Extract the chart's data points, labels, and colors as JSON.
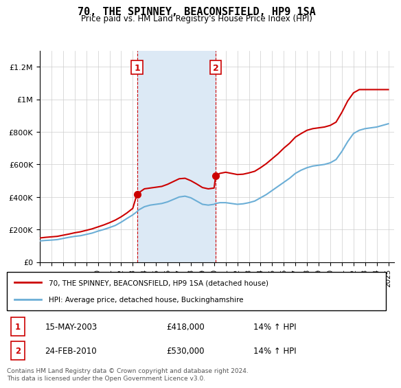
{
  "title": "70, THE SPINNEY, BEACONSFIELD, HP9 1SA",
  "subtitle": "Price paid vs. HM Land Registry's House Price Index (HPI)",
  "ylabel_ticks": [
    "£0",
    "£200K",
    "£400K",
    "£600K",
    "£800K",
    "£1M",
    "£1.2M"
  ],
  "ytick_vals": [
    0,
    200000,
    400000,
    600000,
    800000,
    1000000,
    1200000
  ],
  "ylim": [
    0,
    1300000
  ],
  "xlim_start": 1995,
  "xlim_end": 2025.5,
  "legend_line1": "70, THE SPINNEY, BEACONSFIELD, HP9 1SA (detached house)",
  "legend_line2": "HPI: Average price, detached house, Buckinghamshire",
  "footnote": "Contains HM Land Registry data © Crown copyright and database right 2024.\nThis data is licensed under the Open Government Licence v3.0.",
  "sale1_label": "1",
  "sale1_date": "15-MAY-2003",
  "sale1_price": "£418,000",
  "sale1_hpi": "14% ↑ HPI",
  "sale2_label": "2",
  "sale2_date": "24-FEB-2010",
  "sale2_price": "£530,000",
  "sale2_hpi": "14% ↑ HPI",
  "sale1_year": 2003.37,
  "sale1_value": 418000,
  "sale2_year": 2010.14,
  "sale2_value": 530000,
  "shaded_start": 2003.37,
  "shaded_end": 2010.14,
  "hpi_color": "#6baed6",
  "sale_color": "#cc0000",
  "shaded_color": "#dce9f5",
  "background_color": "#ffffff",
  "grid_color": "#cccccc",
  "hpi_x": [
    1995,
    1995.5,
    1996,
    1996.5,
    1997,
    1997.5,
    1998,
    1998.5,
    1999,
    1999.5,
    2000,
    2000.5,
    2001,
    2001.5,
    2002,
    2002.5,
    2003,
    2003.37,
    2003.5,
    2004,
    2004.5,
    2005,
    2005.5,
    2006,
    2006.5,
    2007,
    2007.5,
    2008,
    2008.5,
    2009,
    2009.5,
    2010,
    2010.14,
    2010.5,
    2011,
    2011.5,
    2012,
    2012.5,
    2013,
    2013.5,
    2014,
    2014.5,
    2015,
    2015.5,
    2016,
    2016.5,
    2017,
    2017.5,
    2018,
    2018.5,
    2019,
    2019.5,
    2020,
    2020.5,
    2021,
    2021.5,
    2022,
    2022.5,
    2023,
    2023.5,
    2024,
    2024.5,
    2025
  ],
  "hpi_y": [
    130000,
    133000,
    135000,
    138000,
    145000,
    152000,
    158000,
    162000,
    170000,
    178000,
    190000,
    200000,
    212000,
    225000,
    245000,
    268000,
    290000,
    310000,
    320000,
    340000,
    350000,
    355000,
    360000,
    370000,
    385000,
    400000,
    405000,
    395000,
    375000,
    355000,
    350000,
    355000,
    360000,
    365000,
    365000,
    360000,
    355000,
    358000,
    365000,
    375000,
    395000,
    415000,
    440000,
    465000,
    490000,
    515000,
    545000,
    565000,
    580000,
    590000,
    595000,
    600000,
    610000,
    630000,
    680000,
    740000,
    790000,
    810000,
    820000,
    825000,
    830000,
    840000,
    850000
  ],
  "sale_x": [
    1995,
    1995.5,
    1996,
    1996.5,
    1997,
    1997.5,
    1998,
    1998.5,
    1999,
    1999.5,
    2000,
    2000.5,
    2001,
    2001.5,
    2002,
    2002.5,
    2003,
    2003.37,
    2003.5,
    2004,
    2004.5,
    2005,
    2005.5,
    2006,
    2006.5,
    2007,
    2007.5,
    2008,
    2008.5,
    2009,
    2009.5,
    2010,
    2010.14,
    2010.5,
    2011,
    2011.5,
    2012,
    2012.5,
    2013,
    2013.5,
    2014,
    2014.5,
    2015,
    2015.5,
    2016,
    2016.5,
    2017,
    2017.5,
    2018,
    2018.5,
    2019,
    2019.5,
    2020,
    2020.5,
    2021,
    2021.5,
    2022,
    2022.5,
    2023,
    2023.5,
    2024,
    2024.5,
    2025
  ],
  "sale_y": [
    148000,
    152000,
    155000,
    158000,
    165000,
    172000,
    180000,
    186000,
    195000,
    204000,
    216000,
    228000,
    242000,
    258000,
    278000,
    302000,
    330000,
    418000,
    425000,
    450000,
    455000,
    460000,
    465000,
    478000,
    495000,
    512000,
    515000,
    500000,
    480000,
    458000,
    450000,
    455000,
    530000,
    545000,
    552000,
    545000,
    538000,
    540000,
    548000,
    558000,
    580000,
    605000,
    635000,
    665000,
    700000,
    730000,
    768000,
    790000,
    810000,
    820000,
    825000,
    830000,
    840000,
    860000,
    920000,
    990000,
    1040000,
    1060000,
    1060000,
    1060000,
    1060000,
    1060000,
    1060000
  ]
}
